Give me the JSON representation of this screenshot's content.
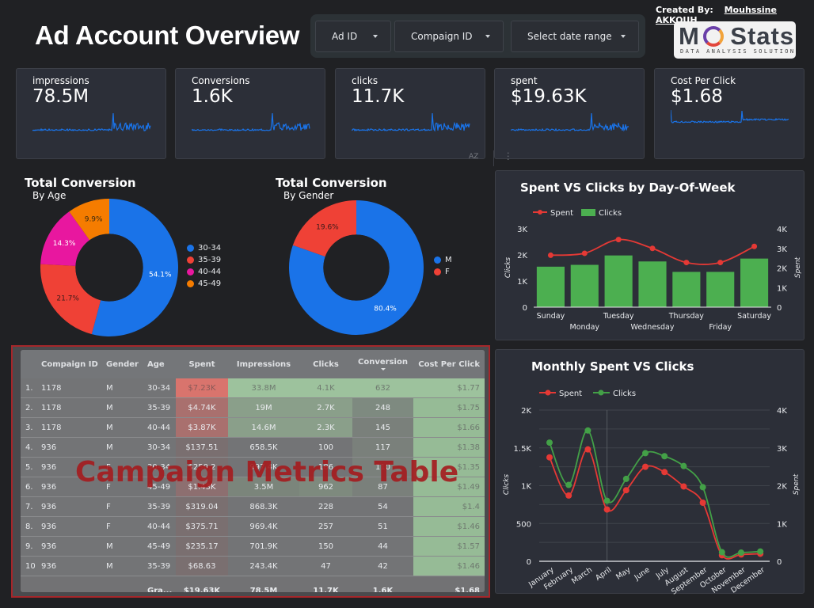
{
  "header": {
    "title": "Ad Account Overview",
    "created_by_label": "Created By:",
    "created_by_name": "Mouhssine AKKOUH",
    "logo_text": "MoStats",
    "logo_tagline": "DATA ANALYSIS SOLUTION"
  },
  "filters": [
    {
      "label": "Ad ID",
      "icon": "caret-down-icon"
    },
    {
      "label": "Compaign ID",
      "icon": "caret-down-icon"
    },
    {
      "label": "Select date range",
      "icon": "caret-down-icon"
    }
  ],
  "kpis": [
    {
      "label": "impressions",
      "value": "78.5M"
    },
    {
      "label": "Conversions",
      "value": "1.6K"
    },
    {
      "label": "clicks",
      "value": "11.7K"
    },
    {
      "label": "spent",
      "value": "$19.63K"
    },
    {
      "label": "Cost Per Click",
      "value": "$1.68"
    }
  ],
  "toolbar": {
    "sort_icon_label": "AZ",
    "menu_icon": "more-vert-icon"
  },
  "colors": {
    "blue": "#1a73e8",
    "red": "#ef4136",
    "magenta": "#e8179f",
    "orange": "#f57c00",
    "green": "#4caf50",
    "line_red": "#e53935",
    "line_green": "#43a047",
    "table_border": "#a5262a"
  },
  "chart_data": [
    {
      "type": "pie",
      "title": "Total Conversion",
      "subtitle": "By Age",
      "labels": [
        "30-34",
        "35-39",
        "40-44",
        "45-49"
      ],
      "values": [
        54.1,
        21.7,
        14.3,
        9.9
      ],
      "value_labels": [
        "54.1%",
        "21.7%",
        "14.3%",
        "9.9%"
      ],
      "colors": [
        "#1a73e8",
        "#ef4136",
        "#e8179f",
        "#f57c00"
      ],
      "legend": "right"
    },
    {
      "type": "pie",
      "title": "Total Conversion",
      "subtitle": "By Gender",
      "labels": [
        "M",
        "F"
      ],
      "values": [
        80.4,
        19.6
      ],
      "value_labels": [
        "80.4%",
        "19.6%"
      ],
      "colors": [
        "#1a73e8",
        "#ef4136"
      ],
      "legend": "right"
    },
    {
      "type": "bar",
      "title": "Spent VS Clicks by Day-Of-Week",
      "categories": [
        "Sunday",
        "Monday",
        "Tuesday",
        "Wednesday",
        "Thursday",
        "Friday",
        "Saturday"
      ],
      "series": [
        {
          "name": "Clicks",
          "kind": "bar",
          "axis": "left",
          "values": [
            1550,
            1620,
            1980,
            1750,
            1350,
            1350,
            1860
          ]
        },
        {
          "name": "Spent",
          "kind": "line",
          "axis": "right",
          "values": [
            2650,
            2750,
            3450,
            3000,
            2280,
            2280,
            3100
          ]
        }
      ],
      "ylabel": "Clicks",
      "y2label": "Spent",
      "ylim": [
        0,
        3000
      ],
      "y2lim": [
        0,
        4000
      ],
      "yticks": [
        "0",
        "1K",
        "2K",
        "3K"
      ],
      "y2ticks": [
        "0",
        "1K",
        "2K",
        "3K",
        "4K"
      ],
      "legend": "top-left"
    },
    {
      "type": "line",
      "title": "Monthly Spent VS Clicks",
      "categories": [
        "January",
        "February",
        "March",
        "April",
        "May",
        "June",
        "July",
        "August",
        "September",
        "October",
        "November",
        "December"
      ],
      "series": [
        {
          "name": "Spent",
          "axis": "right",
          "color": "#e53935",
          "values": [
            2750,
            1740,
            2960,
            1370,
            1880,
            2500,
            2360,
            1980,
            1550,
            160,
            180,
            200
          ]
        },
        {
          "name": "Clicks",
          "axis": "left",
          "color": "#43a047",
          "values": [
            1570,
            1010,
            1730,
            800,
            1090,
            1430,
            1390,
            1260,
            980,
            120,
            115,
            130
          ]
        }
      ],
      "ylabel": "Clicks",
      "y2label": "Spent",
      "ylim": [
        0,
        2000
      ],
      "y2lim": [
        0,
        4000
      ],
      "yticks": [
        "0",
        "500",
        "1K",
        "1.5K",
        "2K"
      ],
      "y2ticks": [
        "0",
        "1K",
        "2K",
        "3K",
        "4K"
      ],
      "grid": true,
      "legend": "top-left"
    }
  ],
  "table": {
    "overlay_title": "Campaign Metrics Table",
    "columns": [
      "",
      "Compaign ID",
      "Gender",
      "Age",
      "Spent",
      "Impressions",
      "Clicks",
      "Conversion",
      "Cost Per Click"
    ],
    "sorted_column": "Conversion",
    "rows": [
      [
        "1.",
        "1178",
        "M",
        "30-34",
        "$7.23K",
        "33.8M",
        "4.1K",
        "632",
        "$1.77"
      ],
      [
        "2.",
        "1178",
        "M",
        "35-39",
        "$4.74K",
        "19M",
        "2.7K",
        "248",
        "$1.75"
      ],
      [
        "3.",
        "1178",
        "M",
        "40-44",
        "$3.87K",
        "14.6M",
        "2.3K",
        "145",
        "$1.66"
      ],
      [
        "4.",
        "936",
        "M",
        "30-34",
        "$137.51",
        "658.5K",
        "100",
        "117",
        "$1.38"
      ],
      [
        "5.",
        "936",
        "F",
        "30-34",
        "$250.2",
        "997.4K",
        "186",
        "110",
        "$1.35"
      ],
      [
        "6.",
        "936",
        "F",
        "45-49",
        "$1.43K",
        "3.5M",
        "962",
        "87",
        "$1.49"
      ],
      [
        "7.",
        "936",
        "F",
        "35-39",
        "$319.04",
        "868.3K",
        "228",
        "54",
        "$1.4"
      ],
      [
        "8.",
        "936",
        "F",
        "40-44",
        "$375.71",
        "969.4K",
        "257",
        "51",
        "$1.46"
      ],
      [
        "9.",
        "936",
        "M",
        "45-49",
        "$235.17",
        "701.9K",
        "150",
        "44",
        "$1.57"
      ],
      [
        "10",
        "936",
        "M",
        "35-39",
        "$68.63",
        "243.4K",
        "47",
        "42",
        "$1.46"
      ]
    ],
    "footer": [
      "",
      "",
      "",
      "Gra...",
      "$19.63K",
      "78.5M",
      "11.7K",
      "1.6K",
      "$1.68"
    ]
  }
}
